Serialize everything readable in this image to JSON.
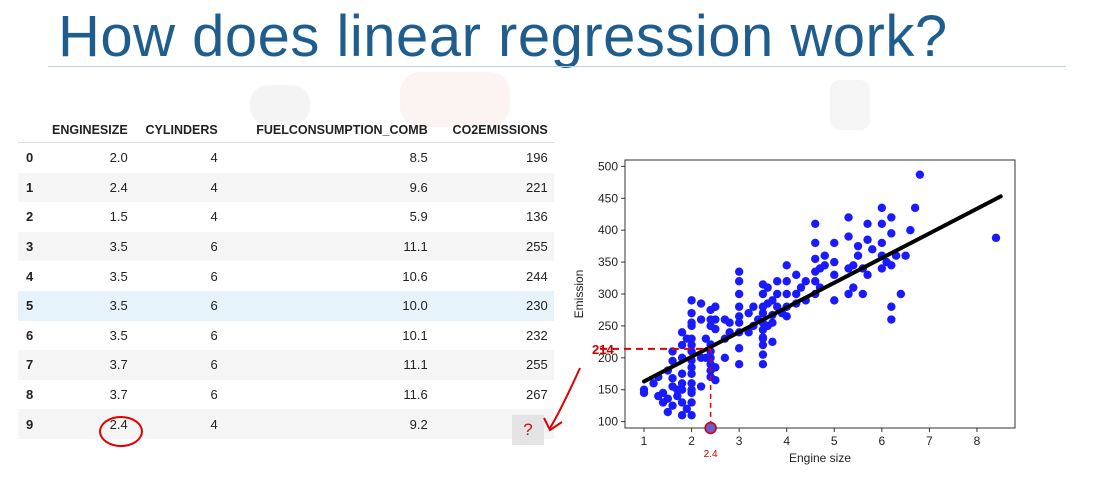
{
  "slide": {
    "title": "How does linear regression work?"
  },
  "table": {
    "columns": [
      "",
      "ENGINESIZE",
      "CYLINDERS",
      "FUELCONSUMPTION_COMB",
      "CO2EMISSIONS"
    ],
    "rows": [
      [
        "0",
        "2.0",
        "4",
        "8.5",
        "196"
      ],
      [
        "1",
        "2.4",
        "4",
        "9.6",
        "221"
      ],
      [
        "2",
        "1.5",
        "4",
        "5.9",
        "136"
      ],
      [
        "3",
        "3.5",
        "6",
        "11.1",
        "255"
      ],
      [
        "4",
        "3.5",
        "6",
        "10.6",
        "244"
      ],
      [
        "5",
        "3.5",
        "6",
        "10.0",
        "230"
      ],
      [
        "6",
        "3.5",
        "6",
        "10.1",
        "232"
      ],
      [
        "7",
        "3.7",
        "6",
        "11.1",
        "255"
      ],
      [
        "8",
        "3.7",
        "6",
        "11.6",
        "267"
      ],
      [
        "9",
        "2.4",
        "4",
        "9.2",
        "?"
      ]
    ],
    "highlighted_row": 5
  },
  "annotation": {
    "marker_color": "#e00000"
  },
  "chart_data": {
    "type": "scatter",
    "xlabel": "Engine size",
    "ylabel": "Emission",
    "xlim": [
      0.6,
      8.8
    ],
    "ylim": [
      90,
      510
    ],
    "xticks": [
      1,
      2,
      3,
      4,
      5,
      6,
      7,
      8
    ],
    "yticks": [
      100,
      150,
      200,
      250,
      300,
      350,
      400,
      450,
      500
    ],
    "point_color": "#1a1aff",
    "line_color": "#000000",
    "fit_line": {
      "x": [
        1.0,
        8.5
      ],
      "y": [
        163,
        453
      ]
    },
    "prediction": {
      "x": 2.4,
      "y": 214,
      "x_label": "2.4",
      "y_label": "214"
    },
    "points": [
      [
        1.0,
        150
      ],
      [
        1.0,
        145
      ],
      [
        1.2,
        160
      ],
      [
        1.3,
        140
      ],
      [
        1.3,
        170
      ],
      [
        1.4,
        130
      ],
      [
        1.4,
        145
      ],
      [
        1.5,
        136
      ],
      [
        1.5,
        115
      ],
      [
        1.5,
        180
      ],
      [
        1.6,
        125
      ],
      [
        1.6,
        155
      ],
      [
        1.6,
        195
      ],
      [
        1.6,
        210
      ],
      [
        1.6,
        168
      ],
      [
        1.7,
        140
      ],
      [
        1.7,
        150
      ],
      [
        1.8,
        110
      ],
      [
        1.8,
        150
      ],
      [
        1.8,
        175
      ],
      [
        1.8,
        200
      ],
      [
        1.8,
        220
      ],
      [
        1.8,
        240
      ],
      [
        1.8,
        130
      ],
      [
        1.8,
        160
      ],
      [
        1.9,
        120
      ],
      [
        1.9,
        230
      ],
      [
        2.0,
        196
      ],
      [
        2.0,
        210
      ],
      [
        2.0,
        175
      ],
      [
        2.0,
        150
      ],
      [
        2.0,
        160
      ],
      [
        2.0,
        230
      ],
      [
        2.0,
        250
      ],
      [
        2.0,
        255
      ],
      [
        2.0,
        270
      ],
      [
        2.0,
        290
      ],
      [
        2.0,
        110
      ],
      [
        2.0,
        130
      ],
      [
        2.0,
        145
      ],
      [
        2.0,
        185
      ],
      [
        2.0,
        220
      ],
      [
        2.2,
        155
      ],
      [
        2.2,
        200
      ],
      [
        2.2,
        260
      ],
      [
        2.2,
        285
      ],
      [
        2.3,
        200
      ],
      [
        2.3,
        230
      ],
      [
        2.4,
        221
      ],
      [
        2.4,
        200
      ],
      [
        2.4,
        180
      ],
      [
        2.4,
        170
      ],
      [
        2.4,
        250
      ],
      [
        2.4,
        260
      ],
      [
        2.4,
        275
      ],
      [
        2.4,
        190
      ],
      [
        2.4,
        210
      ],
      [
        2.5,
        165
      ],
      [
        2.5,
        185
      ],
      [
        2.5,
        245
      ],
      [
        2.5,
        260
      ],
      [
        2.5,
        280
      ],
      [
        2.7,
        200
      ],
      [
        2.7,
        230
      ],
      [
        2.7,
        260
      ],
      [
        2.8,
        240
      ],
      [
        2.8,
        255
      ],
      [
        3.0,
        190
      ],
      [
        3.0,
        215
      ],
      [
        3.0,
        240
      ],
      [
        3.0,
        255
      ],
      [
        3.0,
        265
      ],
      [
        3.0,
        280
      ],
      [
        3.0,
        300
      ],
      [
        3.0,
        320
      ],
      [
        3.0,
        335
      ],
      [
        3.2,
        240
      ],
      [
        3.2,
        270
      ],
      [
        3.3,
        250
      ],
      [
        3.3,
        280
      ],
      [
        3.4,
        260
      ],
      [
        3.5,
        255
      ],
      [
        3.5,
        244
      ],
      [
        3.5,
        230
      ],
      [
        3.5,
        232
      ],
      [
        3.5,
        270
      ],
      [
        3.5,
        280
      ],
      [
        3.5,
        300
      ],
      [
        3.5,
        315
      ],
      [
        3.5,
        220
      ],
      [
        3.5,
        205
      ],
      [
        3.5,
        190
      ],
      [
        3.6,
        250
      ],
      [
        3.6,
        285
      ],
      [
        3.6,
        310
      ],
      [
        3.7,
        255
      ],
      [
        3.7,
        267
      ],
      [
        3.7,
        290
      ],
      [
        3.7,
        225
      ],
      [
        3.8,
        280
      ],
      [
        3.8,
        300
      ],
      [
        3.8,
        320
      ],
      [
        3.9,
        270
      ],
      [
        4.0,
        265
      ],
      [
        4.0,
        280
      ],
      [
        4.0,
        300
      ],
      [
        4.0,
        320
      ],
      [
        4.0,
        345
      ],
      [
        4.2,
        285
      ],
      [
        4.2,
        300
      ],
      [
        4.2,
        330
      ],
      [
        4.3,
        310
      ],
      [
        4.4,
        290
      ],
      [
        4.4,
        320
      ],
      [
        4.6,
        300
      ],
      [
        4.6,
        320
      ],
      [
        4.6,
        335
      ],
      [
        4.6,
        355
      ],
      [
        4.6,
        380
      ],
      [
        4.6,
        410
      ],
      [
        4.7,
        310
      ],
      [
        4.7,
        340
      ],
      [
        4.8,
        345
      ],
      [
        4.8,
        360
      ],
      [
        5.0,
        330
      ],
      [
        5.0,
        290
      ],
      [
        5.0,
        350
      ],
      [
        5.0,
        380
      ],
      [
        5.3,
        300
      ],
      [
        5.3,
        340
      ],
      [
        5.3,
        390
      ],
      [
        5.3,
        420
      ],
      [
        5.4,
        310
      ],
      [
        5.4,
        345
      ],
      [
        5.5,
        360
      ],
      [
        5.5,
        375
      ],
      [
        5.6,
        300
      ],
      [
        5.6,
        340
      ],
      [
        5.7,
        330
      ],
      [
        5.7,
        385
      ],
      [
        5.7,
        410
      ],
      [
        5.8,
        370
      ],
      [
        6.0,
        340
      ],
      [
        6.0,
        360
      ],
      [
        6.0,
        380
      ],
      [
        6.0,
        410
      ],
      [
        6.0,
        435
      ],
      [
        6.1,
        350
      ],
      [
        6.2,
        345
      ],
      [
        6.2,
        395
      ],
      [
        6.2,
        420
      ],
      [
        6.2,
        280
      ],
      [
        6.2,
        260
      ],
      [
        6.3,
        360
      ],
      [
        6.4,
        300
      ],
      [
        6.5,
        360
      ],
      [
        6.6,
        400
      ],
      [
        6.7,
        435
      ],
      [
        6.8,
        487
      ],
      [
        8.4,
        388
      ]
    ]
  }
}
